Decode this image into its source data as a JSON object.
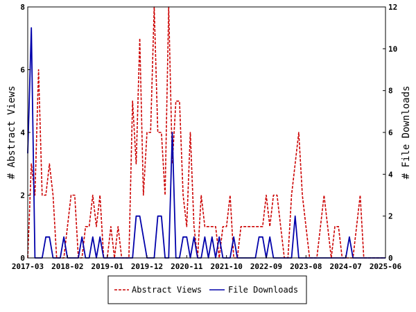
{
  "chart_data": {
    "type": "line",
    "x_tick_labels": [
      "2017-03",
      "2018-02",
      "2019-01",
      "2019-12",
      "2020-11",
      "2021-10",
      "2022-09",
      "2023-08",
      "2024-07",
      "2025-06"
    ],
    "ylabel_left": "# Abstract Views",
    "ylabel_right": "# File Downloads",
    "ylim_left": [
      0,
      8
    ],
    "ylim_right": [
      0,
      12
    ],
    "yticks_left": [
      "0",
      "2",
      "4",
      "6",
      "8"
    ],
    "yticks_right": [
      "0",
      "2",
      "4",
      "6",
      "8",
      "10",
      "12"
    ],
    "x": [
      "2017-03",
      "2017-04",
      "2017-05",
      "2017-06",
      "2017-07",
      "2017-08",
      "2017-09",
      "2017-10",
      "2017-11",
      "2017-12",
      "2018-01",
      "2018-02",
      "2018-03",
      "2018-04",
      "2018-05",
      "2018-06",
      "2018-07",
      "2018-08",
      "2018-09",
      "2018-10",
      "2018-11",
      "2018-12",
      "2019-01",
      "2019-02",
      "2019-03",
      "2019-04",
      "2019-05",
      "2019-06",
      "2019-07",
      "2019-08",
      "2019-09",
      "2019-10",
      "2019-11",
      "2019-12",
      "2020-01",
      "2020-02",
      "2020-03",
      "2020-04",
      "2020-05",
      "2020-06",
      "2020-07",
      "2020-08",
      "2020-09",
      "2020-10",
      "2020-11",
      "2020-12",
      "2021-01",
      "2021-02",
      "2021-03",
      "2021-04",
      "2021-05",
      "2021-06",
      "2021-07",
      "2021-08",
      "2021-09",
      "2021-10",
      "2021-11",
      "2021-12",
      "2022-01",
      "2022-02",
      "2022-03",
      "2022-04",
      "2022-05",
      "2022-06",
      "2022-07",
      "2022-08",
      "2022-09",
      "2022-10",
      "2022-11",
      "2022-12",
      "2023-01",
      "2023-02",
      "2023-03",
      "2023-04",
      "2023-05",
      "2023-06",
      "2023-07",
      "2023-08",
      "2023-09",
      "2023-10",
      "2023-11",
      "2023-12",
      "2024-01",
      "2024-02",
      "2024-03",
      "2024-04",
      "2024-05",
      "2024-06",
      "2024-07",
      "2024-08",
      "2024-09",
      "2024-10",
      "2024-11",
      "2024-12",
      "2025-01",
      "2025-02",
      "2025-03",
      "2025-04",
      "2025-05",
      "2025-06"
    ],
    "series": [
      {
        "name": "Abstract Views",
        "axis": "left",
        "color": "#cc0000",
        "dash": true,
        "values": [
          0,
          3,
          2,
          6,
          2,
          2,
          3,
          2,
          0,
          0,
          0,
          1,
          2,
          2,
          0,
          0,
          1,
          1,
          2,
          1,
          2,
          0,
          0,
          1,
          0,
          1,
          0,
          0,
          0,
          5,
          3,
          7,
          2,
          4,
          4,
          8,
          4,
          4,
          2,
          8,
          3,
          5,
          5,
          2,
          1,
          4,
          1,
          0,
          2,
          1,
          1,
          1,
          1,
          0,
          1,
          1,
          2,
          0,
          0,
          1,
          1,
          1,
          1,
          1,
          1,
          1,
          2,
          1,
          2,
          2,
          1,
          0,
          0,
          2,
          3,
          4,
          2,
          1,
          0,
          0,
          0,
          1,
          2,
          1,
          0,
          1,
          1,
          0,
          0,
          0,
          0,
          1,
          2,
          0,
          0,
          0,
          0,
          0,
          0,
          0
        ]
      },
      {
        "name": "File Downloads",
        "axis": "right",
        "color": "#0000aa",
        "dash": false,
        "values": [
          5,
          11,
          0,
          0,
          0,
          1,
          1,
          0,
          0,
          0,
          1,
          0,
          0,
          0,
          0,
          1,
          0,
          0,
          1,
          0,
          1,
          0,
          0,
          0,
          0,
          0,
          0,
          0,
          0,
          0,
          2,
          2,
          1,
          0,
          0,
          0,
          2,
          2,
          0,
          0,
          6,
          0,
          0,
          1,
          1,
          0,
          1,
          0,
          0,
          1,
          0,
          1,
          0,
          1,
          0,
          0,
          0,
          1,
          0,
          0,
          0,
          0,
          0,
          0,
          1,
          1,
          0,
          1,
          0,
          0,
          0,
          0,
          0,
          0,
          2,
          0,
          0,
          0,
          0,
          0,
          0,
          0,
          0,
          0,
          0,
          0,
          0,
          0,
          0,
          1,
          0,
          0,
          0,
          0,
          0,
          0,
          0,
          0,
          0,
          0
        ]
      }
    ],
    "grid": false,
    "legend_position": "bottom"
  }
}
